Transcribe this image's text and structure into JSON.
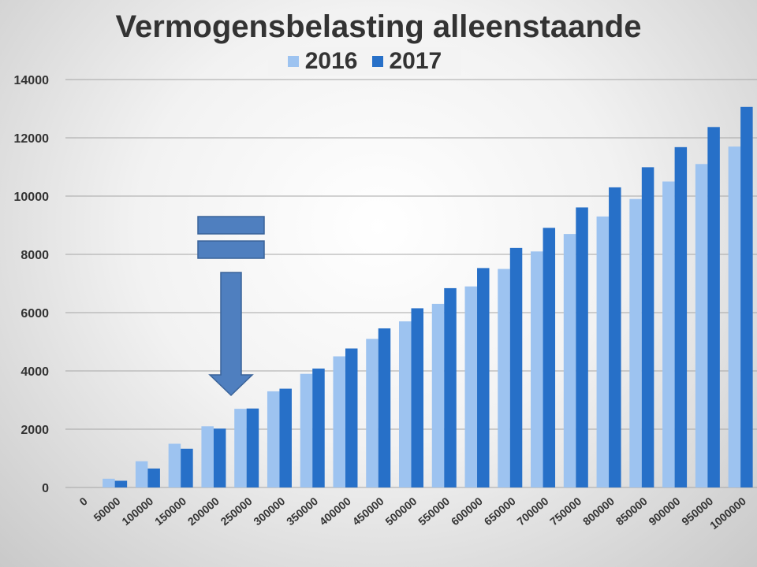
{
  "chart_data": {
    "type": "bar",
    "title": "Vermogensbelasting alleenstaande",
    "xlabel": "",
    "ylabel": "",
    "ylim": [
      0,
      14000
    ],
    "yticks": [
      0,
      2000,
      4000,
      6000,
      8000,
      10000,
      12000,
      14000
    ],
    "grid": true,
    "legend_position": "top",
    "categories": [
      "0",
      "50000",
      "100000",
      "150000",
      "200000",
      "250000",
      "300000",
      "350000",
      "400000",
      "450000",
      "500000",
      "550000",
      "600000",
      "650000",
      "700000",
      "750000",
      "800000",
      "850000",
      "900000",
      "950000",
      "1000000"
    ],
    "series": [
      {
        "name": "2016",
        "color": "#9dc3f0",
        "values": [
          0,
          300,
          900,
          1500,
          2100,
          2700,
          3300,
          3900,
          4500,
          5100,
          5700,
          6300,
          6900,
          7500,
          8100,
          8700,
          9300,
          9900,
          10500,
          11100,
          11700
        ]
      },
      {
        "name": "2017",
        "color": "#2770c8",
        "values": [
          0,
          230,
          650,
          1330,
          2020,
          2710,
          3390,
          4080,
          4770,
          5460,
          6150,
          6840,
          7530,
          8220,
          8910,
          9610,
          10300,
          10990,
          11680,
          12370,
          13060
        ]
      }
    ],
    "annotation": {
      "type": "equals-sign-with-down-arrow",
      "color": "#4f7fbf",
      "points_to_category": "250000"
    }
  }
}
